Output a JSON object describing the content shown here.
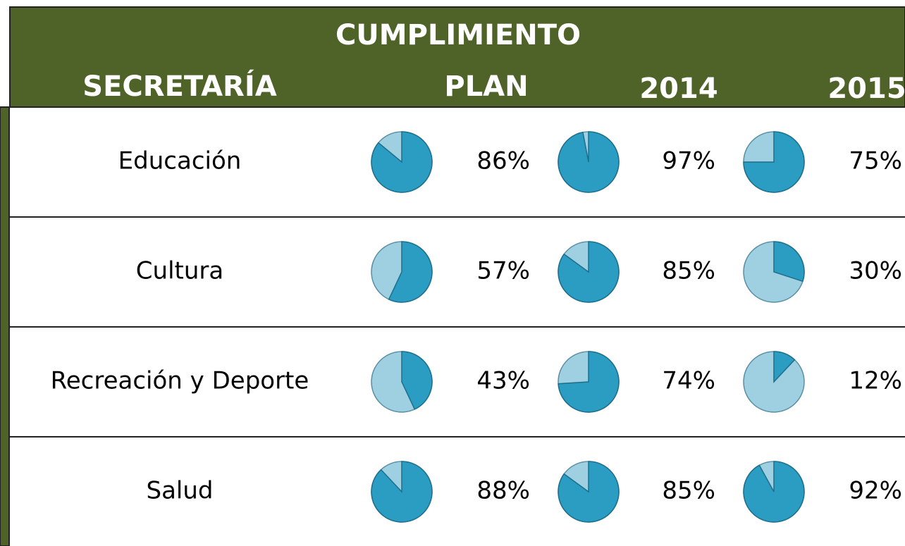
{
  "header": {
    "title": "CUMPLIMIENTO",
    "columns": [
      "SECRETARÍA",
      "PLAN",
      "2014",
      "2015"
    ]
  },
  "table": {
    "rows": [
      {
        "name": "Educación",
        "values": [
          86,
          97,
          75
        ],
        "value_labels": [
          "86%",
          "97%",
          "75%"
        ]
      },
      {
        "name": "Cultura",
        "values": [
          57,
          85,
          30
        ],
        "value_labels": [
          "57%",
          "85%",
          "30%"
        ]
      },
      {
        "name": "Recreación y Deporte",
        "values": [
          43,
          74,
          12
        ],
        "value_labels": [
          "43%",
          "74%",
          "12%"
        ]
      },
      {
        "name": "Salud",
        "values": [
          88,
          85,
          92
        ],
        "value_labels": [
          "88%",
          "85%",
          "92%"
        ]
      }
    ]
  }
}
